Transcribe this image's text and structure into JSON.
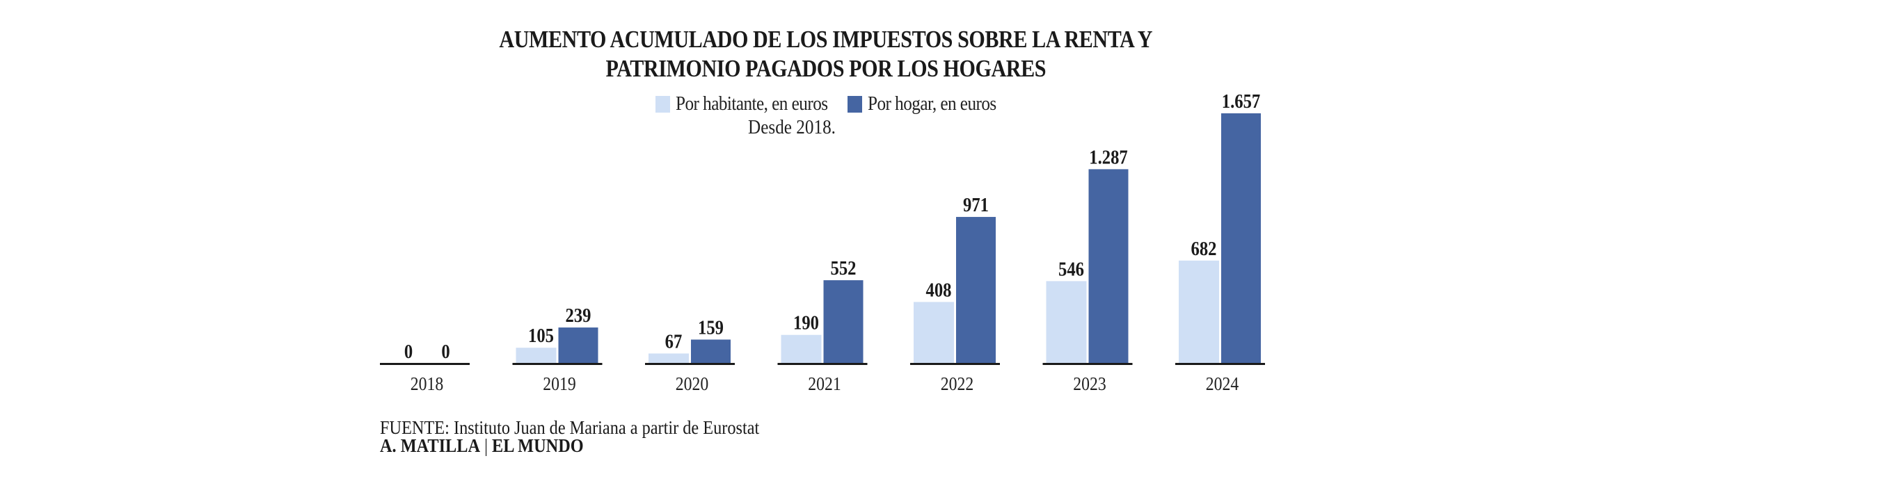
{
  "chart_data": {
    "type": "bar",
    "title": "AUMENTO ACUMULADO DE LOS IMPUESTOS SOBRE LA RENTA Y PATRIMONIO PAGADOS POR LOS HOGARES",
    "title_lines": [
      "AUMENTO ACUMULADO DE LOS IMPUESTOS SOBRE LA RENTA Y",
      "PATRIMONIO PAGADOS POR LOS HOGARES"
    ],
    "subtitle": "Desde 2018.",
    "xlabel": "",
    "ylabel": "",
    "ylim": [
      0,
      1657
    ],
    "grid": false,
    "legend_position": "top-center",
    "categories": [
      "2018",
      "2019",
      "2020",
      "2021",
      "2022",
      "2023",
      "2024"
    ],
    "series": [
      {
        "name": "Por habitante, en euros",
        "color": "#cfdff5",
        "values": [
          0,
          105,
          67,
          190,
          408,
          546,
          682
        ],
        "labels": [
          "0",
          "105",
          "67",
          "190",
          "408",
          "546",
          "682"
        ]
      },
      {
        "name": "Por hogar, en euros",
        "color": "#4565a2",
        "values": [
          0,
          239,
          159,
          552,
          971,
          1287,
          1657
        ],
        "labels": [
          "0",
          "239",
          "159",
          "552",
          "971",
          "1.287",
          "1.657"
        ]
      }
    ]
  },
  "footer": {
    "source_prefix": "FUENTE:",
    "source_text": "Instituto Juan de Mariana a partir de Eurostat",
    "author": "A. MATILLA",
    "separator": "|",
    "outlet": "EL MUNDO"
  },
  "colors": {
    "text": "#1a1a1a",
    "axis": "#1a1a1a",
    "series_light": "#cfdff5",
    "series_dark": "#4565a2"
  }
}
